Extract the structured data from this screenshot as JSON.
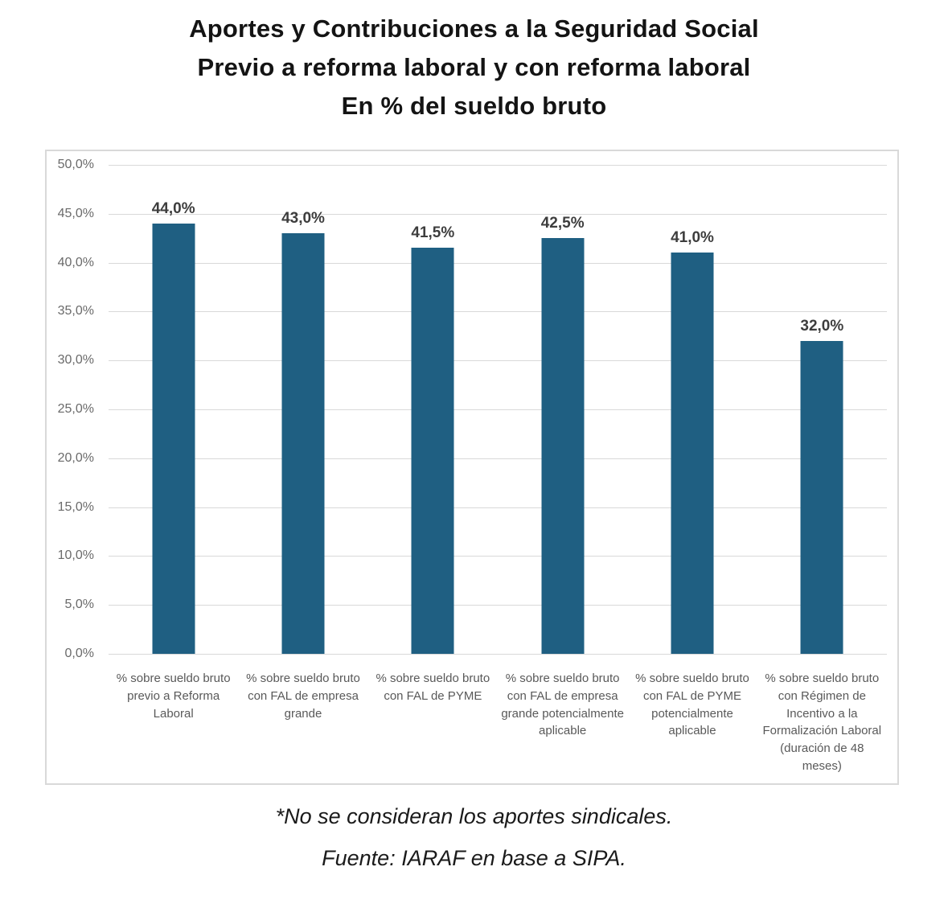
{
  "chart_data": {
    "type": "bar",
    "title": "Aportes y Contribuciones a la Seguridad Social Previo a reforma laboral y con reforma laboral En % del sueldo bruto",
    "title_lines": [
      "Aportes y Contribuciones a la Seguridad Social",
      "Previo a reforma laboral y con reforma laboral",
      "En % del sueldo bruto"
    ],
    "categories": [
      "% sobre sueldo bruto previo a Reforma Laboral",
      "% sobre sueldo bruto con FAL de empresa grande",
      "% sobre sueldo bruto con FAL de PYME",
      "% sobre sueldo bruto con FAL de empresa grande potencialmente aplicable",
      "% sobre sueldo bruto con FAL de PYME potencialmente aplicable",
      "% sobre sueldo bruto con Régimen de Incentivo a la Formalización Laboral (duración de 48 meses)"
    ],
    "values": [
      44.0,
      43.0,
      41.5,
      42.5,
      41.0,
      32.0
    ],
    "value_labels": [
      "44,0%",
      "43,0%",
      "41,5%",
      "42,5%",
      "41,0%",
      "32,0%"
    ],
    "xlabel": "",
    "ylabel": "",
    "ylim": [
      0,
      50
    ],
    "yticks": [
      {
        "value": 0,
        "label": "0,0%"
      },
      {
        "value": 5,
        "label": "5,0%"
      },
      {
        "value": 10,
        "label": "10,0%"
      },
      {
        "value": 15,
        "label": "15,0%"
      },
      {
        "value": 20,
        "label": "20,0%"
      },
      {
        "value": 25,
        "label": "25,0%"
      },
      {
        "value": 30,
        "label": "30,0%"
      },
      {
        "value": 35,
        "label": "35,0%"
      },
      {
        "value": 40,
        "label": "40,0%"
      },
      {
        "value": 45,
        "label": "45,0%"
      },
      {
        "value": 50,
        "label": "50,0%"
      }
    ],
    "grid": true,
    "legend": "none",
    "bar_color": "#1F5F82",
    "gridline_color": "#d9d9d9"
  },
  "footer": {
    "note": "*No se consideran los aportes sindicales.",
    "source": "Fuente: IARAF en base a SIPA."
  }
}
